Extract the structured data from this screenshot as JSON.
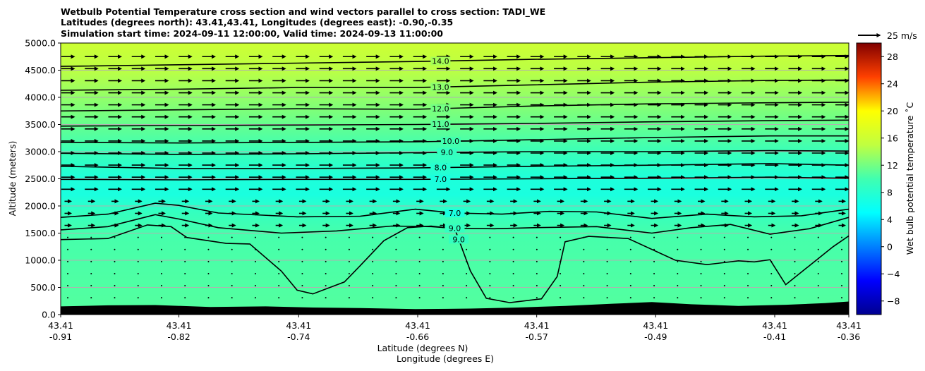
{
  "chart_data": {
    "type": "cross-section",
    "title_lines": [
      "Wetbulb Potential Temperature cross section and wind vectors parallel to cross section: TADI_WE",
      "Latitudes (degrees north): 43.41,43.41, Longitudes (degrees east): -0.90,-0.35",
      "Simulation start time: 2024-09-11 12:00:00, Valid time: 2024-09-13 11:00:00"
    ],
    "xlabel_line1": "Latitude (degrees N)",
    "xlabel_line2": "Longitude (degrees E)",
    "ylabel": "Altitude (meters)",
    "xlim": [
      0,
      1
    ],
    "ylim": [
      0,
      5000
    ],
    "x_ticks": [
      {
        "pos": 0.0,
        "lat": "43.41",
        "lon": "-0.91"
      },
      {
        "pos": 0.15,
        "lat": "43.41",
        "lon": "-0.82"
      },
      {
        "pos": 0.302,
        "lat": "43.41",
        "lon": "-0.74"
      },
      {
        "pos": 0.453,
        "lat": "43.41",
        "lon": "-0.66"
      },
      {
        "pos": 0.604,
        "lat": "43.41",
        "lon": "-0.57"
      },
      {
        "pos": 0.755,
        "lat": "43.41",
        "lon": "-0.49"
      },
      {
        "pos": 0.906,
        "lat": "43.41",
        "lon": "-0.41"
      },
      {
        "pos": 1.0,
        "lat": "43.41",
        "lon": "-0.36"
      }
    ],
    "y_ticks": [
      {
        "value": 0,
        "label": "0.0"
      },
      {
        "value": 500,
        "label": "500.0"
      },
      {
        "value": 1000,
        "label": "1000.0"
      },
      {
        "value": 1500,
        "label": "1500.0"
      },
      {
        "value": 2000,
        "label": "2000.0"
      },
      {
        "value": 2500,
        "label": "2500.0"
      },
      {
        "value": 3000,
        "label": "3000.0"
      },
      {
        "value": 3500,
        "label": "3500.0"
      },
      {
        "value": 4000,
        "label": "4000.0"
      },
      {
        "value": 4500,
        "label": "4500.0"
      },
      {
        "value": 5000,
        "label": "5000.0"
      }
    ],
    "colorbar": {
      "label": "Wet bulb potential temperature $^\\circ$C",
      "label_display": "Wet bulb potential temperature ˚C",
      "range": [
        -10,
        30
      ],
      "ticks": [
        -8,
        -4,
        0,
        4,
        8,
        12,
        16,
        20,
        24,
        28
      ],
      "tick_labels": [
        "−8",
        "−4",
        "0",
        "4",
        "8",
        "12",
        "16",
        "20",
        "24",
        "28"
      ]
    },
    "quiver_key": {
      "label": "25 m/s",
      "speed": 25
    },
    "background_bands": [
      {
        "alt": 0,
        "temp": 10.8
      },
      {
        "alt": 1500,
        "temp": 10.2
      },
      {
        "alt": 1900,
        "temp": 9.0
      },
      {
        "alt": 2200,
        "temp": 7.0
      },
      {
        "alt": 2500,
        "temp": 7.3
      },
      {
        "alt": 3000,
        "temp": 9.5
      },
      {
        "alt": 3500,
        "temp": 11.5
      },
      {
        "alt": 4000,
        "temp": 13.2
      },
      {
        "alt": 4500,
        "temp": 14.8
      },
      {
        "alt": 5000,
        "temp": 16.0
      }
    ],
    "terrain": {
      "x": [
        0,
        0.06,
        0.12,
        0.19,
        0.26,
        0.32,
        0.38,
        0.45,
        0.52,
        0.58,
        0.64,
        0.7,
        0.75,
        0.8,
        0.86,
        0.92,
        0.97,
        1.0
      ],
      "alt": [
        150,
        170,
        175,
        140,
        150,
        130,
        120,
        100,
        110,
        130,
        160,
        200,
        230,
        190,
        160,
        180,
        210,
        240
      ]
    },
    "contours": [
      {
        "level": "14.0",
        "x": [
          0,
          0.15,
          0.3,
          0.45,
          0.6,
          0.75,
          0.9,
          1.0
        ],
        "alt": [
          4570,
          4600,
          4630,
          4660,
          4700,
          4730,
          4760,
          4770
        ],
        "label_x": 0.482
      },
      {
        "level": "13.0",
        "x": [
          0,
          0.15,
          0.3,
          0.45,
          0.6,
          0.75,
          0.9,
          1.0
        ],
        "alt": [
          4130,
          4150,
          4180,
          4180,
          4230,
          4280,
          4310,
          4320
        ],
        "label_x": 0.482
      },
      {
        "level": "12.0",
        "x": [
          0,
          0.15,
          0.3,
          0.45,
          0.6,
          0.75,
          0.9,
          1.0
        ],
        "alt": [
          3750,
          3770,
          3790,
          3780,
          3840,
          3880,
          3900,
          3910
        ],
        "label_x": 0.482
      },
      {
        "level": "11.0",
        "x": [
          0,
          0.15,
          0.3,
          0.45,
          0.6,
          0.75,
          0.9,
          1.0
        ],
        "alt": [
          3470,
          3480,
          3490,
          3500,
          3520,
          3550,
          3570,
          3580
        ],
        "label_x": 0.482
      },
      {
        "level": "10.0",
        "x": [
          0,
          0.15,
          0.3,
          0.45,
          0.6,
          0.75,
          0.9,
          1.0
        ],
        "alt": [
          3170,
          3160,
          3170,
          3180,
          3220,
          3260,
          3290,
          3290
        ],
        "label_x": 0.495
      },
      {
        "level": "9.0",
        "x": [
          0,
          0.15,
          0.3,
          0.45,
          0.6,
          0.75,
          0.9,
          1.0
        ],
        "alt": [
          2970,
          2950,
          2960,
          2980,
          3000,
          3000,
          3020,
          3010
        ],
        "label_x": 0.49
      },
      {
        "level": "8.0",
        "x": [
          0,
          0.15,
          0.3,
          0.45,
          0.6,
          0.75,
          0.9,
          1.0
        ],
        "alt": [
          2730,
          2690,
          2690,
          2700,
          2730,
          2750,
          2780,
          2750
        ],
        "label_x": 0.482
      },
      {
        "level": "7.0",
        "x": [
          0,
          0.15,
          0.3,
          0.45,
          0.6,
          0.75,
          0.9,
          1.0
        ],
        "alt": [
          2490,
          2480,
          2490,
          2490,
          2500,
          2510,
          2530,
          2510
        ],
        "label_x": 0.482
      },
      {
        "level": "7.0",
        "x": [
          0,
          0.06,
          0.12,
          0.15,
          0.2,
          0.3,
          0.38,
          0.45,
          0.5,
          0.56,
          0.62,
          0.68,
          0.75,
          0.82,
          0.88,
          0.94,
          1.0
        ],
        "alt": [
          1790,
          1850,
          2050,
          2010,
          1870,
          1800,
          1810,
          1940,
          1870,
          1850,
          1900,
          1890,
          1770,
          1850,
          1800,
          1820,
          1940
        ],
        "label_x": 0.5
      },
      {
        "level": "9.0",
        "x": [
          0,
          0.06,
          0.12,
          0.15,
          0.2,
          0.28,
          0.35,
          0.42,
          0.47,
          0.5,
          0.55,
          0.6,
          0.68,
          0.75,
          0.8,
          0.85,
          0.9,
          0.95,
          1.0
        ],
        "alt": [
          1560,
          1620,
          1840,
          1760,
          1600,
          1500,
          1540,
          1630,
          1620,
          1590,
          1580,
          1600,
          1620,
          1500,
          1600,
          1660,
          1480,
          1580,
          1790
        ],
        "label_x": 0.5
      },
      {
        "level": "9.0",
        "x": [
          0,
          0.06,
          0.11,
          0.14,
          0.16,
          0.21,
          0.24,
          0.28,
          0.3,
          0.32,
          0.36,
          0.38,
          0.41,
          0.44,
          0.47,
          0.5,
          0.52,
          0.54,
          0.57,
          0.61,
          0.63,
          0.64,
          0.67,
          0.72,
          0.78,
          0.82,
          0.86,
          0.88,
          0.9,
          0.92,
          0.95,
          0.98,
          1.0
        ],
        "alt": [
          1380,
          1400,
          1650,
          1620,
          1420,
          1310,
          1300,
          800,
          450,
          380,
          600,
          900,
          1360,
          1600,
          1630,
          1580,
          800,
          300,
          220,
          290,
          700,
          1340,
          1440,
          1400,
          1000,
          920,
          990,
          970,
          1010,
          550,
          900,
          1250,
          1450
        ],
        "label_x": 0.505
      }
    ]
  }
}
